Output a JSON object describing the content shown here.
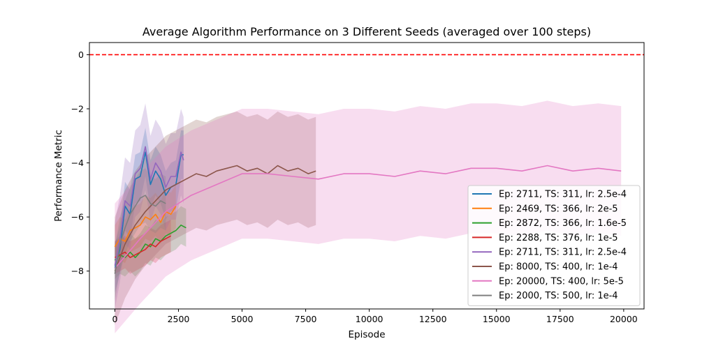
{
  "chart_data": {
    "type": "line",
    "title": "Average Algorithm Performance on 3 Different Seeds (averaged over 100 steps)",
    "xlabel": "Episode",
    "ylabel": "Performance Metric",
    "xlim": [
      -1000,
      20800
    ],
    "ylim": [
      -9.4,
      0.45
    ],
    "xticks": [
      0,
      2500,
      5000,
      7500,
      10000,
      12500,
      15000,
      17500,
      20000
    ],
    "yticks": [
      0,
      -2,
      -4,
      -6,
      -8
    ],
    "grid": false,
    "legend_position": "lower right",
    "reference_line": {
      "y": 0,
      "color": "#ff0000",
      "style": "dashed"
    },
    "series": [
      {
        "name": "Ep: 2711, TS: 311, lr: 2.5e-4",
        "color": "#1f77b4",
        "x": [
          0,
          200,
          400,
          600,
          800,
          1000,
          1200,
          1400,
          1600,
          1800,
          2000,
          2200,
          2400,
          2600,
          2700
        ],
        "y": [
          -7.9,
          -7.2,
          -5.6,
          -5.9,
          -4.6,
          -4.5,
          -3.6,
          -4.8,
          -4.3,
          -4.6,
          -5.2,
          -4.9,
          -4.8,
          -3.7,
          -3.7
        ],
        "band": 0.9
      },
      {
        "name": "Ep: 2469, TS: 366, lr: 2e-5",
        "color": "#ff7f0e",
        "x": [
          0,
          200,
          400,
          600,
          800,
          1000,
          1200,
          1400,
          1600,
          1800,
          2000,
          2200,
          2400
        ],
        "y": [
          -7.1,
          -6.8,
          -6.9,
          -6.5,
          -6.4,
          -6.3,
          -6.0,
          -6.1,
          -5.9,
          -6.2,
          -5.8,
          -5.9,
          -5.6
        ],
        "band": 0.8
      },
      {
        "name": "Ep: 2872, TS: 366, lr: 1.6e-5",
        "color": "#2ca02c",
        "x": [
          0,
          200,
          400,
          600,
          800,
          1000,
          1200,
          1400,
          1600,
          1800,
          2000,
          2200,
          2400,
          2600,
          2800
        ],
        "y": [
          -7.6,
          -7.4,
          -7.5,
          -7.3,
          -7.5,
          -7.3,
          -7.0,
          -7.1,
          -6.8,
          -6.9,
          -6.7,
          -6.6,
          -6.5,
          -6.3,
          -6.4
        ],
        "band": 0.7
      },
      {
        "name": "Ep: 2288, TS: 376, lr: 1e-5",
        "color": "#d62728",
        "x": [
          0,
          200,
          400,
          600,
          800,
          1000,
          1200,
          1400,
          1600,
          1800,
          2000,
          2200
        ],
        "y": [
          -7.5,
          -7.4,
          -7.3,
          -7.5,
          -7.4,
          -7.3,
          -7.2,
          -7.0,
          -7.1,
          -6.9,
          -6.8,
          -6.7
        ],
        "band": 0.6
      },
      {
        "name": "Ep: 2711, TS: 311, lr: 2.5e-4",
        "color": "#9467bd",
        "x": [
          0,
          200,
          400,
          600,
          800,
          1000,
          1200,
          1400,
          1600,
          1800,
          2000,
          2200,
          2400,
          2600,
          2700
        ],
        "y": [
          -7.8,
          -6.8,
          -5.4,
          -5.6,
          -4.4,
          -4.2,
          -3.4,
          -4.6,
          -4.0,
          -4.3,
          -4.9,
          -4.5,
          -4.5,
          -3.6,
          -3.9
        ],
        "band": 1.6
      },
      {
        "name": "Ep: 8000, TS: 400, lr: 1e-4",
        "color": "#8c564b",
        "x": [
          0,
          400,
          800,
          1200,
          1600,
          2000,
          2400,
          2800,
          3200,
          3600,
          4000,
          4400,
          4800,
          5200,
          5600,
          6000,
          6400,
          6800,
          7200,
          7600,
          7900
        ],
        "y": [
          -8.0,
          -7.0,
          -6.3,
          -5.8,
          -5.4,
          -5.0,
          -4.8,
          -4.6,
          -4.4,
          -4.5,
          -4.3,
          -4.2,
          -4.1,
          -4.3,
          -4.2,
          -4.4,
          -4.1,
          -4.3,
          -4.2,
          -4.4,
          -4.3
        ],
        "band": 2.0
      },
      {
        "name": "Ep: 20000, TS: 400, lr: 5e-5",
        "color": "#e377c2",
        "x": [
          0,
          1000,
          2000,
          3000,
          4000,
          5000,
          6000,
          7000,
          8000,
          9000,
          10000,
          11000,
          12000,
          13000,
          14000,
          15000,
          16000,
          17000,
          18000,
          19000,
          19900
        ],
        "y": [
          -7.9,
          -6.8,
          -5.8,
          -5.2,
          -4.8,
          -4.4,
          -4.4,
          -4.5,
          -4.6,
          -4.4,
          -4.4,
          -4.5,
          -4.3,
          -4.4,
          -4.2,
          -4.2,
          -4.3,
          -4.1,
          -4.3,
          -4.2,
          -4.3
        ],
        "band": 2.4
      },
      {
        "name": "Ep: 2000, TS: 500, lr: 1e-4",
        "color": "#7f7f7f",
        "x": [
          0,
          200,
          400,
          600,
          800,
          1000,
          1200,
          1400,
          1600,
          1800,
          2000
        ],
        "y": [
          -8.1,
          -7.0,
          -6.4,
          -5.9,
          -5.6,
          -5.3,
          -5.2,
          -5.5,
          -5.6,
          -5.4,
          -5.5
        ],
        "band": 1.0
      }
    ]
  }
}
